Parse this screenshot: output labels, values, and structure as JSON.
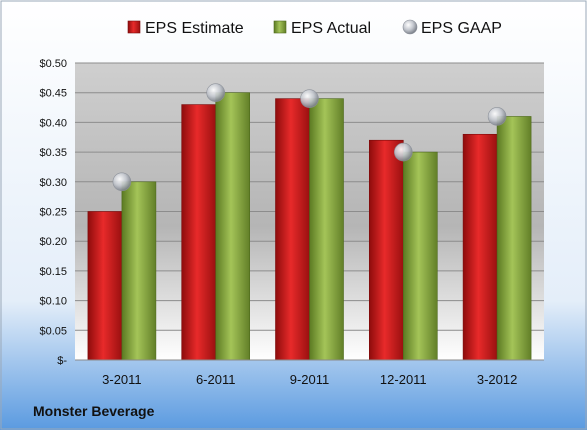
{
  "chart_data": {
    "type": "bar",
    "categories": [
      "3-2011",
      "6-2011",
      "9-2011",
      "12-2011",
      "3-2012"
    ],
    "series": [
      {
        "name": "EPS Estimate",
        "kind": "bar",
        "color": "#d42020",
        "values": [
          0.25,
          0.43,
          0.44,
          0.37,
          0.38
        ]
      },
      {
        "name": "EPS Actual",
        "kind": "bar",
        "color": "#8aaa3a",
        "values": [
          0.3,
          0.45,
          0.44,
          0.35,
          0.41
        ]
      },
      {
        "name": "EPS GAAP",
        "kind": "scatter",
        "color": "#b8bcc4",
        "values": [
          0.3,
          0.45,
          0.44,
          0.35,
          0.41
        ]
      }
    ],
    "y_ticks": [
      {
        "value": 0.0,
        "label": "$-"
      },
      {
        "value": 0.05,
        "label": "$0.05"
      },
      {
        "value": 0.1,
        "label": "$0.10"
      },
      {
        "value": 0.15,
        "label": "$0.15"
      },
      {
        "value": 0.2,
        "label": "$0.20"
      },
      {
        "value": 0.25,
        "label": "$0.25"
      },
      {
        "value": 0.3,
        "label": "$0.30"
      },
      {
        "value": 0.35,
        "label": "$0.35"
      },
      {
        "value": 0.4,
        "label": "$0.40"
      },
      {
        "value": 0.45,
        "label": "$0.45"
      },
      {
        "value": 0.5,
        "label": "$0.50"
      }
    ],
    "ylim": [
      0,
      0.5
    ],
    "grid": true,
    "legend_position": "top",
    "caption": "Monster Beverage"
  }
}
